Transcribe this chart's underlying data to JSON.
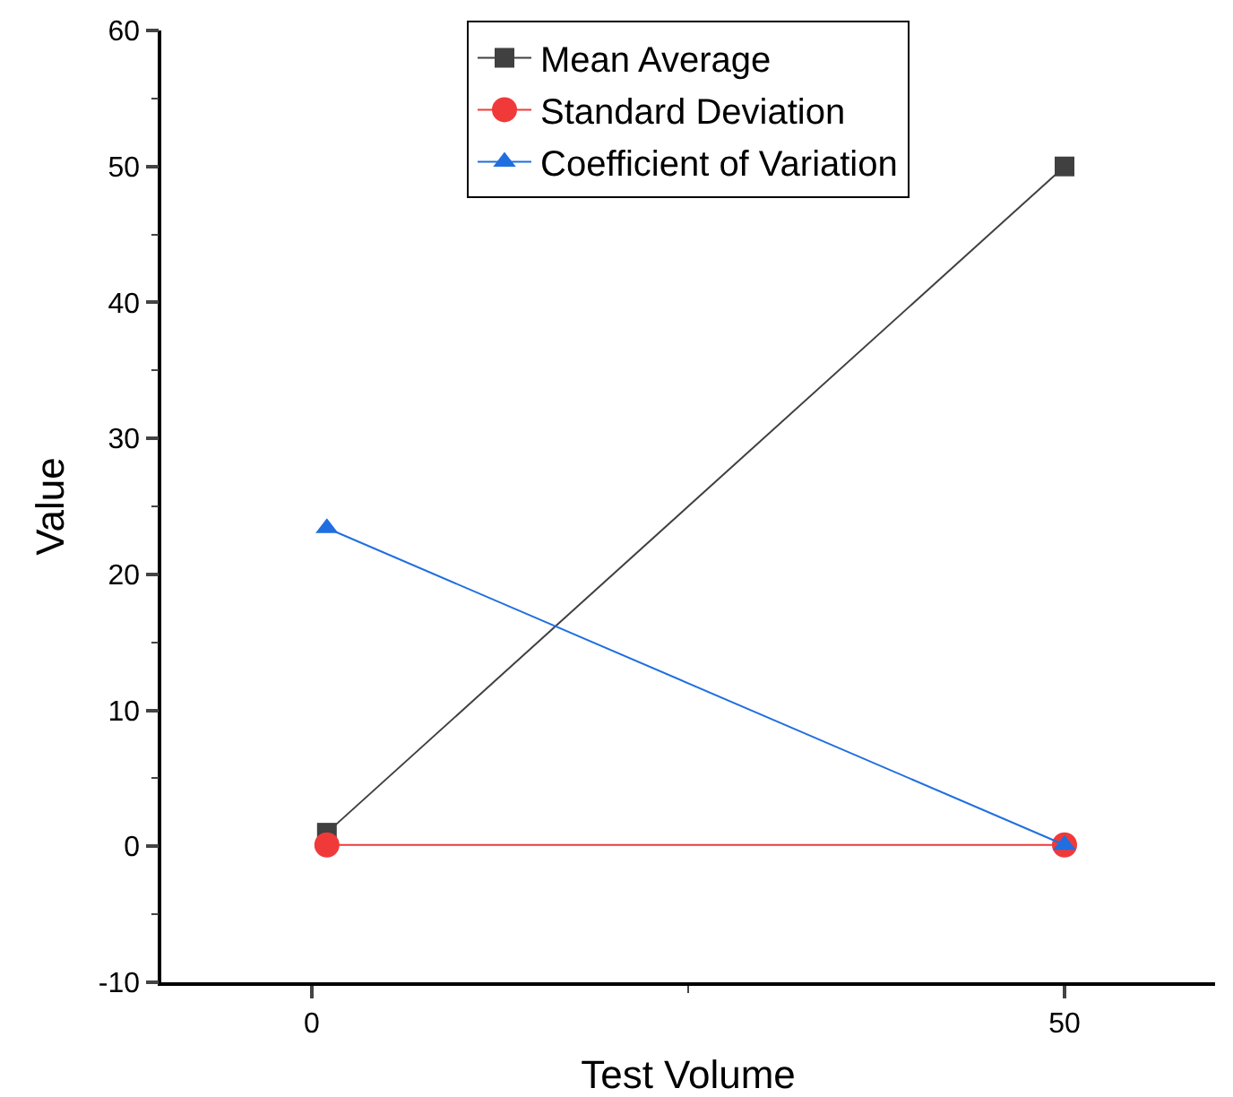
{
  "chart_data": {
    "type": "line",
    "xlabel": "Test Volume",
    "ylabel": "Value",
    "x": [
      1,
      50
    ],
    "series": [
      {
        "name": "Mean Average",
        "color": "#404040",
        "marker": "square",
        "values": [
          1,
          50
        ]
      },
      {
        "name": "Standard Deviation",
        "color": "#f03a3a",
        "marker": "circle",
        "values": [
          0.1,
          0.1
        ]
      },
      {
        "name": "Coefficient of Variation",
        "color": "#1f6fe0",
        "marker": "triangle",
        "values": [
          23.4,
          0.1
        ]
      }
    ],
    "xlim": [
      -10,
      60
    ],
    "xticks": [
      0,
      50
    ],
    "ylim": [
      -10,
      60
    ],
    "yticks": [
      -10,
      0,
      10,
      20,
      30,
      40,
      50,
      60
    ],
    "grid": false,
    "legend": "top",
    "line_style": "solid"
  }
}
